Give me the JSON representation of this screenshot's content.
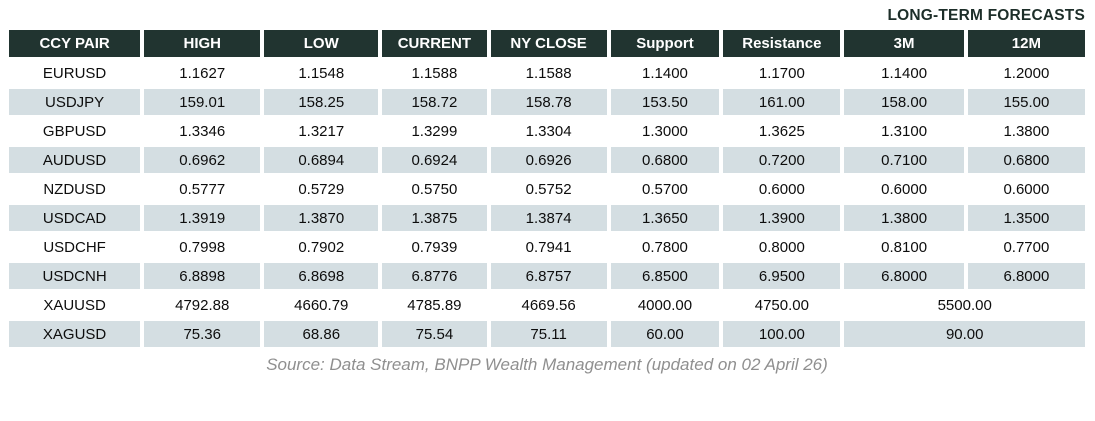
{
  "header": {
    "title": "LONG-TERM FORECASTS"
  },
  "chart_data": {
    "type": "table",
    "title": "LONG-TERM FORECASTS",
    "columns": [
      "CCY PAIR",
      "HIGH",
      "LOW",
      "CURRENT",
      "NY CLOSE",
      "Support",
      "Resistance",
      "3M",
      "12M"
    ],
    "rows": [
      {
        "pair": "EURUSD",
        "high": "1.1627",
        "low": "1.1548",
        "current": "1.1588",
        "ny_close": "1.1588",
        "support": "1.1400",
        "resistance": "1.1700",
        "m3": "1.1400",
        "m12": "1.2000"
      },
      {
        "pair": "USDJPY",
        "high": "159.01",
        "low": "158.25",
        "current": "158.72",
        "ny_close": "158.78",
        "support": "153.50",
        "resistance": "161.00",
        "m3": "158.00",
        "m12": "155.00"
      },
      {
        "pair": "GBPUSD",
        "high": "1.3346",
        "low": "1.3217",
        "current": "1.3299",
        "ny_close": "1.3304",
        "support": "1.3000",
        "resistance": "1.3625",
        "m3": "1.3100",
        "m12": "1.3800"
      },
      {
        "pair": "AUDUSD",
        "high": "0.6962",
        "low": "0.6894",
        "current": "0.6924",
        "ny_close": "0.6926",
        "support": "0.6800",
        "resistance": "0.7200",
        "m3": "0.7100",
        "m12": "0.6800"
      },
      {
        "pair": "NZDUSD",
        "high": "0.5777",
        "low": "0.5729",
        "current": "0.5750",
        "ny_close": "0.5752",
        "support": "0.5700",
        "resistance": "0.6000",
        "m3": "0.6000",
        "m12": "0.6000"
      },
      {
        "pair": "USDCAD",
        "high": "1.3919",
        "low": "1.3870",
        "current": "1.3875",
        "ny_close": "1.3874",
        "support": "1.3650",
        "resistance": "1.3900",
        "m3": "1.3800",
        "m12": "1.3500"
      },
      {
        "pair": "USDCHF",
        "high": "0.7998",
        "low": "0.7902",
        "current": "0.7939",
        "ny_close": "0.7941",
        "support": "0.7800",
        "resistance": "0.8000",
        "m3": "0.8100",
        "m12": "0.7700"
      },
      {
        "pair": "USDCNH",
        "high": "6.8898",
        "low": "6.8698",
        "current": "6.8776",
        "ny_close": "6.8757",
        "support": "6.8500",
        "resistance": "6.9500",
        "m3": "6.8000",
        "m12": "6.8000"
      },
      {
        "pair": "XAUUSD",
        "high": "4792.88",
        "low": "4660.79",
        "current": "4785.89",
        "ny_close": "4669.56",
        "support": "4000.00",
        "resistance": "4750.00",
        "m3_12_merged": "5500.00"
      },
      {
        "pair": "XAGUSD",
        "high": "75.36",
        "low": "68.86",
        "current": "75.54",
        "ny_close": "75.11",
        "support": "60.00",
        "resistance": "100.00",
        "m3_12_merged": "90.00"
      }
    ],
    "layout": {
      "legend": "none",
      "grid": "off",
      "striped_rows": true,
      "merged_forecast_rows": [
        "XAUUSD",
        "XAGUSD"
      ]
    }
  },
  "footer": {
    "source": "Source: Data Stream, BNPP Wealth Management (updated on 02 April 26)"
  },
  "colors": {
    "header_bg": "#213430",
    "header_fg": "#ffffff",
    "stripe_bg": "#d4dee2",
    "title_fg": "#1d2e29",
    "data_fg": "#0d0d0d",
    "footer_fg": "#8f8f8f",
    "page_bg": "#ffffff"
  }
}
